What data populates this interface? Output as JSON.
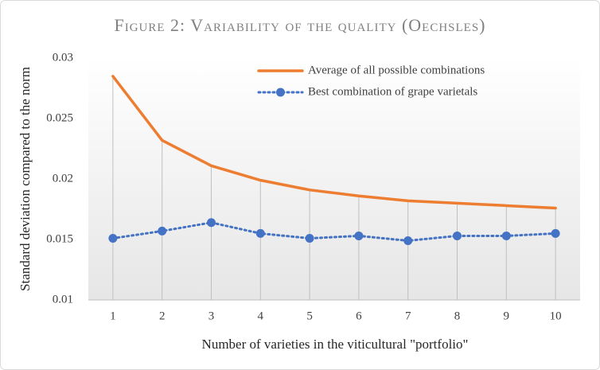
{
  "chart_data": {
    "type": "line",
    "title": "Figure 2: Variability of the quality (Oechsles)",
    "xlabel": "Number of varieties in the viticultural \"portfolio\"",
    "ylabel": "Standard deviation compared to the norm",
    "categories": [
      "1",
      "2",
      "3",
      "4",
      "5",
      "6",
      "7",
      "8",
      "9",
      "10"
    ],
    "series": [
      {
        "name": "Average of all possible combinations",
        "color": "#ed7d31",
        "style": "solid",
        "values": [
          0.0285,
          0.0232,
          0.0211,
          0.0199,
          0.0191,
          0.0186,
          0.0182,
          0.018,
          0.0178,
          0.0176
        ]
      },
      {
        "name": "Best combination of grape varietals",
        "color": "#4472c4",
        "style": "dotted-markers",
        "values": [
          0.0151,
          0.0157,
          0.0164,
          0.0155,
          0.0151,
          0.0153,
          0.0149,
          0.0153,
          0.0153,
          0.0155
        ]
      }
    ],
    "ylim": [
      0.01,
      0.03
    ],
    "yticks": [
      0.01,
      0.015,
      0.02,
      0.025,
      0.03
    ],
    "drop_lines": true,
    "legend": "top-right"
  }
}
